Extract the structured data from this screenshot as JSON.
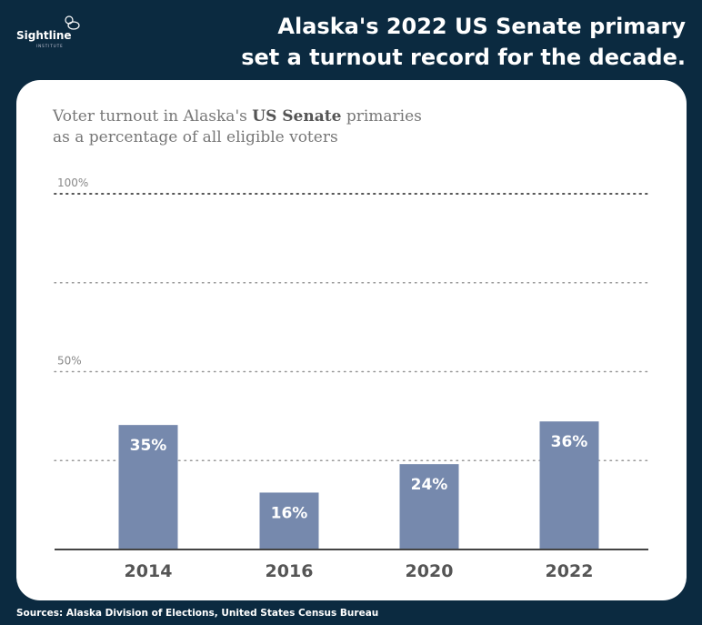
{
  "logo": {
    "name": "Sightline",
    "sub": "INSTITUTE"
  },
  "title": [
    "Alaska's 2022 US Senate primary",
    "set a turnout record for the decade."
  ],
  "subtitle": {
    "pre": "Voter turnout in Alaska's ",
    "bold": "US Senate",
    "post": " primaries",
    "line2": "as a percentage of all eligible voters"
  },
  "source": "Sources: Alaska Division of Elections, United States Census Bureau",
  "chart_data": {
    "type": "bar",
    "categories": [
      "2014",
      "2016",
      "2020",
      "2022"
    ],
    "values": [
      35,
      16,
      24,
      36
    ],
    "data_labels": [
      "35%",
      "16%",
      "24%",
      "36%"
    ],
    "ylim": [
      0,
      100
    ],
    "ytick_labels": [
      {
        "value": 100,
        "label": "100%"
      },
      {
        "value": 50,
        "label": "50%"
      }
    ],
    "gridlines": [
      25,
      50,
      75,
      100
    ],
    "grid": true,
    "bar_color": "#7689ad"
  }
}
